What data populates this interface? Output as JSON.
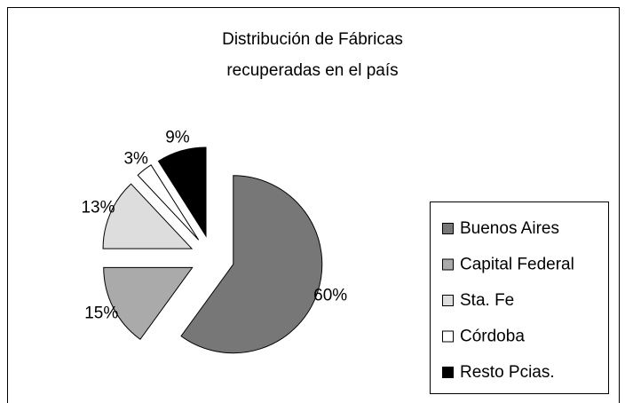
{
  "chart_data": {
    "type": "pie",
    "title": [
      "Distribución de Fábricas",
      "recuperadas en el país"
    ],
    "categories": [
      "Buenos Aires",
      "Capital Federal",
      "Sta. Fe",
      "Córdoba",
      "Resto Pcias."
    ],
    "values": [
      60,
      15,
      13,
      3,
      9
    ],
    "value_labels": [
      "60%",
      "15%",
      "13%",
      "3%",
      "9%"
    ],
    "colors": [
      "#777777",
      "#aaaaaa",
      "#dddddd",
      "#ffffff",
      "#000000"
    ],
    "legend": "right"
  }
}
